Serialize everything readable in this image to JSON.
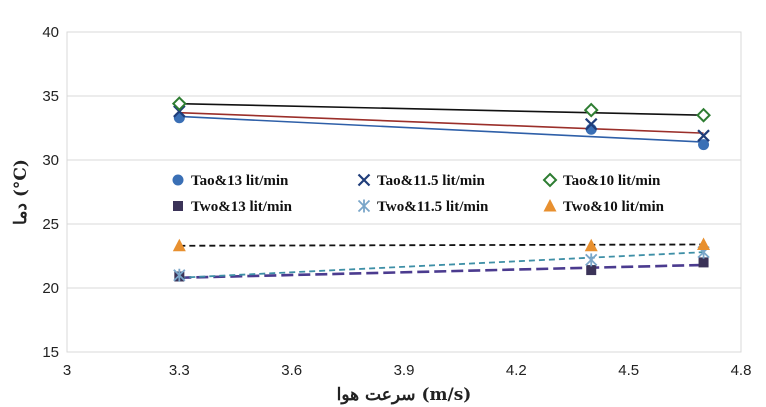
{
  "chart_data": {
    "type": "line",
    "xlabel": "سرعت هوا (m/s)",
    "ylabel": "دما (°C)",
    "xlim": [
      3,
      4.8
    ],
    "ylim": [
      15,
      40
    ],
    "x_ticks": [
      "3",
      "3.3",
      "3.6",
      "3.9",
      "4.2",
      "4.5",
      "4.8"
    ],
    "y_ticks": [
      "15",
      "20",
      "25",
      "30",
      "35",
      "40"
    ],
    "grid": "horizontal",
    "legend_placement": "center",
    "series": [
      {
        "name": "Tao&13 lit/min",
        "marker": "circle",
        "color": "#3a6fb5",
        "line_color": "#2e5fa8",
        "dash": "solid",
        "points": [
          [
            3.3,
            33.3
          ],
          [
            4.4,
            32.4
          ],
          [
            4.7,
            31.2
          ]
        ],
        "fit": [
          [
            3.3,
            33.4
          ],
          [
            4.7,
            31.4
          ]
        ]
      },
      {
        "name": "Tao&11.5 lit/min",
        "marker": "x",
        "color": "#1f3d7a",
        "line_color": "#9b2f2a",
        "dash": "solid",
        "points": [
          [
            3.3,
            33.8
          ],
          [
            4.4,
            32.8
          ],
          [
            4.7,
            31.9
          ]
        ],
        "fit": [
          [
            3.3,
            33.7
          ],
          [
            4.7,
            32.1
          ]
        ]
      },
      {
        "name": "Tao&10 lit/min",
        "marker": "diamond",
        "color": "#2e7d32",
        "line_color": "#111111",
        "dash": "solid",
        "points": [
          [
            3.3,
            34.4
          ],
          [
            4.4,
            33.9
          ],
          [
            4.7,
            33.5
          ]
        ],
        "fit": [
          [
            3.3,
            34.4
          ],
          [
            4.7,
            33.5
          ]
        ]
      },
      {
        "name": "Two&13 lit/min",
        "marker": "square",
        "color": "#3b3358",
        "line_color": "#4b3b8f",
        "dash": "long",
        "points": [
          [
            3.3,
            20.9
          ],
          [
            4.4,
            21.4
          ],
          [
            4.7,
            22.0
          ]
        ],
        "fit": [
          [
            3.3,
            20.8
          ],
          [
            4.7,
            21.8
          ]
        ]
      },
      {
        "name": "Two&11.5 lit/min",
        "marker": "asterisk",
        "color": "#7aa6c9",
        "line_color": "#3e8fa6",
        "dash": "short",
        "points": [
          [
            3.3,
            21.0
          ],
          [
            4.4,
            22.2
          ],
          [
            4.7,
            22.8
          ]
        ],
        "fit": [
          [
            3.3,
            20.8
          ],
          [
            4.7,
            22.8
          ]
        ]
      },
      {
        "name": "Two&10 lit/min",
        "marker": "triangle",
        "color": "#e8902f",
        "line_color": "#111111",
        "dash": "short",
        "points": [
          [
            3.3,
            23.3
          ],
          [
            4.4,
            23.3
          ],
          [
            4.7,
            23.4
          ]
        ],
        "fit": [
          [
            3.3,
            23.3
          ],
          [
            4.7,
            23.4
          ]
        ]
      }
    ]
  }
}
